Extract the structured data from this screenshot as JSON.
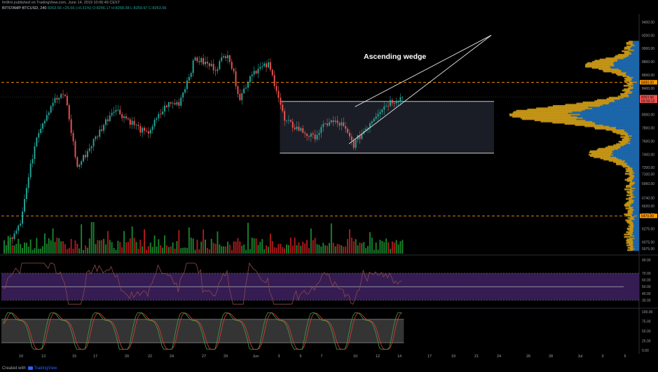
{
  "header": {
    "line1": "fm9tnl published on TradingView.com, June 14, 2019 10:06:49 CEST",
    "symbol": "BITSTAMP:BTCUSD, 240",
    "last": "8263.56",
    "change": "+25.56 (+0.31%)",
    "ohlc": "O:8266.17 H:8268.38 L:8259.97 C:8263.56"
  },
  "footer": {
    "created_with": "Created with",
    "brand": "TradingView"
  },
  "colors": {
    "up": "#26a69a",
    "down": "#ef5350",
    "vol_up": "#1b8a2e",
    "vol_down": "#b71c1c",
    "dashed": "#ff9800",
    "white": "#e6e6e6",
    "rsi_band": "#3b1f5c",
    "rsi_line": "#8b4a4a",
    "stoch_k": "#43a047",
    "stoch_d": "#e53935",
    "vp_blue": "#1e6fb8",
    "vp_orange": "#d4a017",
    "last_label": "#ef5350"
  },
  "chart_data": [
    {
      "type": "candlestick",
      "title": "",
      "annotations": [
        "Ascending wedge"
      ],
      "ylim": [
        5900,
        9500
      ],
      "y_ticks": [
        "9400.00",
        "9200.00",
        "9000.00",
        "8800.00",
        "8600.00",
        "8400.00",
        "8200.00",
        "8000.00",
        "7800.00",
        "7600.00",
        "7400.00",
        "7200.00",
        "7100.00",
        "6960.00",
        "6740.00",
        "6620.00",
        "6495.00",
        "6275.00",
        "6075.00",
        "5975.00"
      ],
      "price_labels": [
        {
          "text": "8490.00",
          "value": 8490,
          "color": "#ff9800"
        },
        {
          "text": "8263.56",
          "value": 8263.56,
          "color": "#ef5350"
        },
        {
          "text": "03:53:12",
          "value": 8210,
          "color": "#ef5350"
        },
        {
          "text": "6470.00",
          "value": 6470,
          "color": "#ff9800"
        }
      ],
      "levels": [
        8490,
        6470
      ],
      "x_ticks": [
        "10",
        "13",
        "15",
        "17",
        "20",
        "22",
        "24",
        "27",
        "29",
        "Jun",
        "3",
        "5",
        "7",
        "10",
        "12",
        "14",
        "17",
        "19",
        "21",
        "24",
        "26",
        "28",
        "Jul",
        "3",
        "5"
      ],
      "key_points": [
        {
          "t": 0,
          "price": 5950
        },
        {
          "t": 8,
          "price": 6400
        },
        {
          "t": 16,
          "price": 7700
        },
        {
          "t": 24,
          "price": 8200
        },
        {
          "t": 30,
          "price": 8300
        },
        {
          "t": 36,
          "price": 7200
        },
        {
          "t": 44,
          "price": 7600
        },
        {
          "t": 54,
          "price": 8100
        },
        {
          "t": 62,
          "price": 7900
        },
        {
          "t": 70,
          "price": 7700
        },
        {
          "t": 80,
          "price": 8150
        },
        {
          "t": 86,
          "price": 8180
        },
        {
          "t": 94,
          "price": 8850
        },
        {
          "t": 104,
          "price": 8700
        },
        {
          "t": 110,
          "price": 8950
        },
        {
          "t": 116,
          "price": 8250
        },
        {
          "t": 122,
          "price": 8650
        },
        {
          "t": 130,
          "price": 8750
        },
        {
          "t": 134,
          "price": 8400
        },
        {
          "t": 138,
          "price": 7900
        },
        {
          "t": 144,
          "price": 7800
        },
        {
          "t": 152,
          "price": 7650
        },
        {
          "t": 160,
          "price": 7900
        },
        {
          "t": 166,
          "price": 7850
        },
        {
          "t": 172,
          "price": 7550
        },
        {
          "t": 178,
          "price": 7800
        },
        {
          "t": 184,
          "price": 8050
        },
        {
          "t": 190,
          "price": 8200
        },
        {
          "t": 196,
          "price": 8264
        }
      ]
    },
    {
      "type": "line",
      "title": "",
      "y_ticks": [
        "90.00",
        "70.00",
        "60.00",
        "50.00",
        "40.00",
        "30.00"
      ],
      "ylim": [
        20,
        95
      ],
      "band": [
        30,
        70
      ],
      "midline": 50
    },
    {
      "type": "line",
      "title": "",
      "y_ticks": [
        "100.00",
        "75.00",
        "50.00",
        "25.00",
        "0.00"
      ],
      "ylim": [
        -5,
        105
      ],
      "band": [
        20,
        80
      ]
    }
  ]
}
